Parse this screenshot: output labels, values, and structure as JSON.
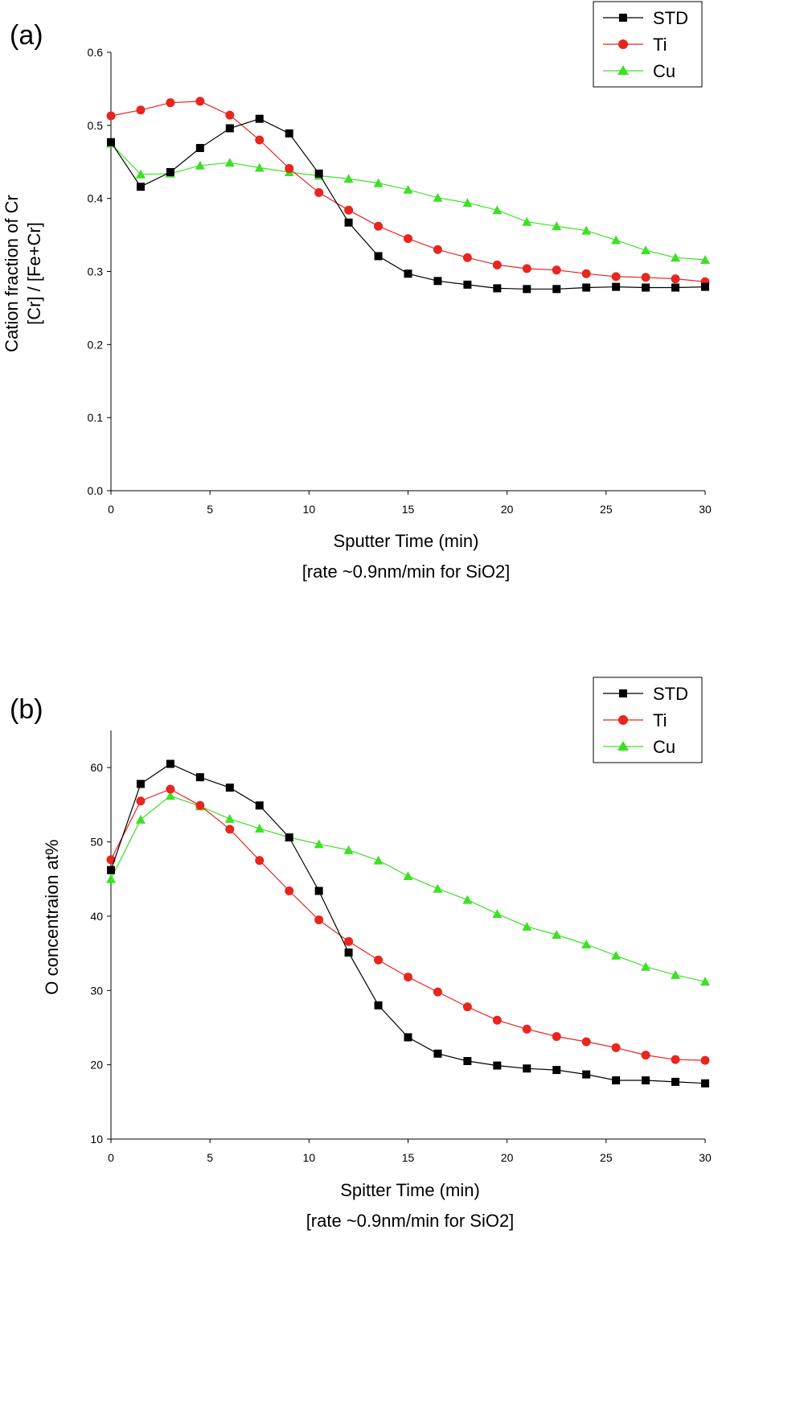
{
  "chart_data": [
    {
      "type": "line",
      "panel_label": "(a)",
      "xlabel": "Sputter Time (min)",
      "xlabel_sub": "[rate ~0.9nm/min for SiO2]",
      "ylabel": "Cation fraction of Cr",
      "ylabel_sub": "[Cr] / [Fe+Cr]",
      "xlim": [
        0,
        30
      ],
      "ylim": [
        0.0,
        0.6
      ],
      "xticks": [
        0,
        5,
        10,
        15,
        20,
        25,
        30
      ],
      "yticks": [
        0.0,
        0.1,
        0.2,
        0.3,
        0.4,
        0.5,
        0.6
      ],
      "ytick_labels": [
        "0.0",
        "0.1",
        "0.2",
        "0.3",
        "0.4",
        "0.5",
        "0.6"
      ],
      "legend_position": "top-right",
      "x": [
        0,
        1.5,
        3,
        4.5,
        6,
        7.5,
        9,
        10.5,
        12,
        13.5,
        15,
        16.5,
        18,
        19.5,
        21,
        22.5,
        24,
        25.5,
        27,
        28.5,
        30
      ],
      "series": [
        {
          "name": "STD",
          "color": "#000000",
          "marker": "square",
          "values": [
            0.477,
            0.416,
            0.436,
            0.469,
            0.496,
            0.509,
            0.489,
            0.434,
            0.367,
            0.321,
            0.297,
            0.287,
            0.282,
            0.277,
            0.276,
            0.276,
            0.278,
            0.279,
            0.278,
            0.278,
            0.279
          ]
        },
        {
          "name": "Ti",
          "color": "#e8251f",
          "marker": "circle",
          "values": [
            0.513,
            0.521,
            0.531,
            0.533,
            0.514,
            0.48,
            0.441,
            0.408,
            0.384,
            0.362,
            0.345,
            0.33,
            0.319,
            0.309,
            0.304,
            0.302,
            0.297,
            0.293,
            0.292,
            0.29,
            0.286
          ]
        },
        {
          "name": "Cu",
          "color": "#3ee026",
          "marker": "triangle",
          "values": [
            0.475,
            0.433,
            0.434,
            0.445,
            0.449,
            0.442,
            0.436,
            0.431,
            0.427,
            0.421,
            0.412,
            0.401,
            0.394,
            0.384,
            0.368,
            0.362,
            0.356,
            0.343,
            0.329,
            0.319,
            0.316
          ]
        }
      ]
    },
    {
      "type": "line",
      "panel_label": "(b)",
      "xlabel": "Spitter Time (min)",
      "xlabel_sub": "[rate  ~0.9nm/min for SiO2]",
      "ylabel": "O concentraion at%",
      "xlim": [
        0,
        30
      ],
      "ylim": [
        10,
        65
      ],
      "xticks": [
        0,
        5,
        10,
        15,
        20,
        25,
        30
      ],
      "yticks": [
        10,
        20,
        30,
        40,
        50,
        60
      ],
      "ytick_labels": [
        "10",
        "20",
        "30",
        "40",
        "50",
        "60"
      ],
      "legend_position": "top-right",
      "x": [
        0,
        1.5,
        3,
        4.5,
        6,
        7.5,
        9,
        10.5,
        12,
        13.5,
        15,
        16.5,
        18,
        19.5,
        21,
        22.5,
        24,
        25.5,
        27,
        28.5,
        30
      ],
      "series": [
        {
          "name": "STD",
          "color": "#000000",
          "marker": "square",
          "values": [
            46.2,
            57.8,
            60.5,
            58.7,
            57.3,
            54.9,
            50.6,
            43.4,
            35.1,
            28.0,
            23.7,
            21.5,
            20.5,
            19.9,
            19.5,
            19.3,
            18.7,
            17.9,
            17.9,
            17.7,
            17.5
          ]
        },
        {
          "name": "Ti",
          "color": "#e8251f",
          "marker": "circle",
          "values": [
            47.6,
            55.5,
            57.1,
            54.9,
            51.7,
            47.5,
            43.4,
            39.5,
            36.6,
            34.1,
            31.8,
            29.8,
            27.8,
            26.0,
            24.8,
            23.8,
            23.1,
            22.3,
            21.3,
            20.7,
            20.6
          ]
        },
        {
          "name": "Cu",
          "color": "#3ee026",
          "marker": "triangle",
          "values": [
            45.0,
            53.0,
            56.2,
            54.8,
            53.1,
            51.8,
            50.6,
            49.7,
            48.9,
            47.5,
            45.4,
            43.7,
            42.2,
            40.3,
            38.6,
            37.5,
            36.2,
            34.7,
            33.2,
            32.1,
            31.2
          ]
        }
      ]
    }
  ]
}
